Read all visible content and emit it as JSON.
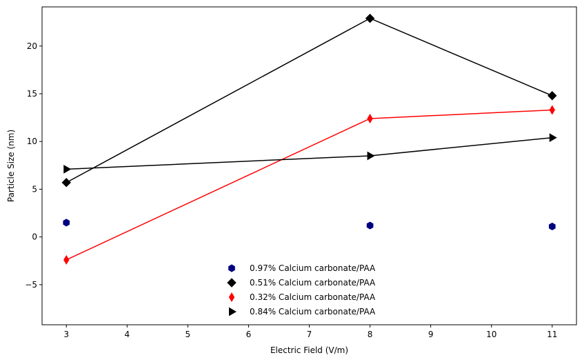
{
  "chart_data": {
    "type": "scatter",
    "title": "",
    "xlabel": "Electric Field (V/m)",
    "ylabel": "Particle Size (nm)",
    "xlim": [
      2.6,
      11.4
    ],
    "ylim": [
      -9.2,
      24.1
    ],
    "xticks": [
      3,
      4,
      5,
      6,
      7,
      8,
      9,
      10,
      11
    ],
    "yticks": [
      -5,
      0,
      5,
      10,
      15,
      20
    ],
    "grid": false,
    "legend_position": "bottom-center",
    "series": [
      {
        "name": "0.97% Calcium carbonate/PAA",
        "color": "#000080",
        "marker": "hexagon",
        "line": false,
        "x": [
          3,
          8,
          11
        ],
        "y": [
          1.5,
          1.2,
          1.1
        ]
      },
      {
        "name": "0.51% Calcium carbonate/PAA",
        "color": "#000000",
        "marker": "diamond",
        "line": true,
        "x": [
          3,
          8,
          11
        ],
        "y": [
          5.7,
          22.9,
          14.8
        ]
      },
      {
        "name": "0.32% Calcium carbonate/PAA",
        "color": "#ff0000",
        "marker": "thin-diamond",
        "line": true,
        "x": [
          3,
          8,
          11
        ],
        "y": [
          -2.4,
          12.4,
          13.3
        ]
      },
      {
        "name": "0.84% Calcium carbonate/PAA",
        "color": "#000000",
        "marker": "triangle-right",
        "line": true,
        "x": [
          3,
          8,
          11
        ],
        "y": [
          7.1,
          8.5,
          10.4
        ]
      }
    ]
  }
}
